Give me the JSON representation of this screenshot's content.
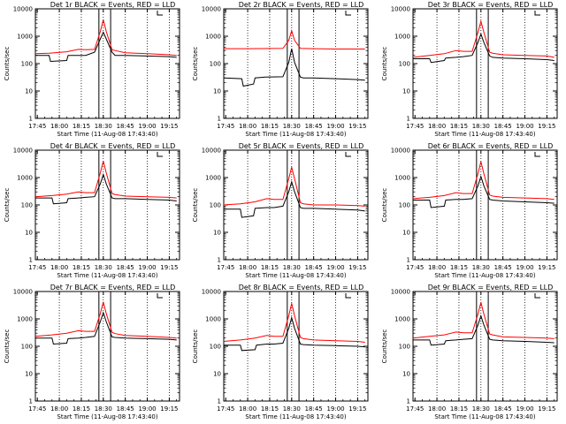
{
  "chart_data": [
    {
      "type": "line",
      "title": "Det 1r BLACK = Events, RED = LLD",
      "xlabel": "Start Time (11-Aug-08 17:43:40)",
      "ylabel": "Counts/sec",
      "yscale": "log",
      "ylim": [
        1,
        10000
      ],
      "xticks": [
        "17:45",
        "18:00",
        "18:15",
        "18:30",
        "18:45",
        "19:00",
        "19:15"
      ],
      "yticks": [
        "1",
        "10",
        "100",
        "1000",
        "10000"
      ],
      "grid": "dotted-vertical",
      "markers": [
        "18:27",
        "18:35"
      ],
      "series": [
        {
          "color": "#000000",
          "x": [
            "17:43",
            "17:53",
            "17:54",
            "18:05",
            "18:06",
            "18:13",
            "18:18",
            "18:24",
            "18:28",
            "18:30",
            "18:32",
            "18:36",
            "18:38",
            "18:45",
            "19:00",
            "19:15",
            "19:20"
          ],
          "values": [
            200,
            200,
            120,
            130,
            200,
            200,
            200,
            260,
            800,
            1400,
            800,
            260,
            200,
            200,
            190,
            180,
            170
          ]
        },
        {
          "color": "#ff0000",
          "x": [
            "17:43",
            "17:53",
            "18:05",
            "18:13",
            "18:18",
            "18:24",
            "18:28",
            "18:30",
            "18:32",
            "18:36",
            "18:38",
            "18:45",
            "19:00",
            "19:15",
            "19:20"
          ],
          "values": [
            230,
            240,
            270,
            330,
            320,
            330,
            1500,
            4000,
            1500,
            320,
            300,
            250,
            230,
            210,
            200
          ]
        }
      ]
    },
    {
      "type": "line",
      "title": "Det 2r BLACK = Events, RED = LLD",
      "xlabel": "Start Time (11-Aug-08 17:43:40)",
      "ylabel": "Counts/sec",
      "yscale": "log",
      "ylim": [
        1,
        10000
      ],
      "xticks": [
        "17:45",
        "18:00",
        "18:15",
        "18:30",
        "18:45",
        "19:00",
        "19:15"
      ],
      "yticks": [
        "1",
        "10",
        "100",
        "1000",
        "10000"
      ],
      "grid": "dotted-vertical",
      "markers": [
        "18:27",
        "18:35"
      ],
      "series": [
        {
          "color": "#000000",
          "x": [
            "17:43",
            "17:56",
            "17:57",
            "18:04",
            "18:05",
            "18:12",
            "18:24",
            "18:28",
            "18:30",
            "18:32",
            "18:36",
            "18:38",
            "18:45",
            "19:00",
            "19:15",
            "19:20"
          ],
          "values": [
            30,
            28,
            15,
            18,
            30,
            32,
            33,
            110,
            350,
            110,
            32,
            30,
            30,
            28,
            26,
            25
          ]
        },
        {
          "color": "#ff0000",
          "x": [
            "17:43",
            "18:00",
            "18:24",
            "18:28",
            "18:30",
            "18:32",
            "18:36",
            "18:45",
            "19:00",
            "19:20"
          ],
          "values": [
            350,
            350,
            360,
            700,
            1600,
            700,
            360,
            350,
            340,
            340
          ]
        }
      ]
    },
    {
      "type": "line",
      "title": "Det 3r BLACK = Events, RED = LLD",
      "xlabel": "Start Time (11-Aug-08 17:43:40)",
      "ylabel": "Counts/sec",
      "yscale": "log",
      "ylim": [
        1,
        10000
      ],
      "xticks": [
        "17:45",
        "18:00",
        "18:15",
        "18:30",
        "18:45",
        "19:00",
        "19:15"
      ],
      "yticks": [
        "1",
        "10",
        "100",
        "1000",
        "10000"
      ],
      "grid": "dotted-vertical",
      "markers": [
        "18:27",
        "18:35"
      ],
      "series": [
        {
          "color": "#000000",
          "x": [
            "17:43",
            "17:55",
            "17:56",
            "18:05",
            "18:06",
            "18:13",
            "18:18",
            "18:24",
            "18:28",
            "18:30",
            "18:32",
            "18:36",
            "18:38",
            "18:45",
            "19:00",
            "19:15",
            "19:20"
          ],
          "values": [
            150,
            150,
            110,
            130,
            160,
            170,
            180,
            200,
            600,
            1200,
            600,
            190,
            170,
            160,
            150,
            140,
            130
          ]
        },
        {
          "color": "#ff0000",
          "x": [
            "17:43",
            "17:55",
            "18:05",
            "18:13",
            "18:18",
            "18:24",
            "18:28",
            "18:30",
            "18:32",
            "18:36",
            "18:38",
            "18:45",
            "19:00",
            "19:15",
            "19:20"
          ],
          "values": [
            170,
            200,
            230,
            300,
            280,
            280,
            1400,
            3500,
            1400,
            260,
            240,
            210,
            200,
            190,
            170
          ]
        }
      ]
    },
    {
      "type": "line",
      "title": "Det 4r BLACK = Events, RED = LLD",
      "xlabel": "Start Time (11-Aug-08 17:43:40)",
      "ylabel": "Counts/sec",
      "yscale": "log",
      "ylim": [
        1,
        10000
      ],
      "xticks": [
        "17:45",
        "18:00",
        "18:15",
        "18:30",
        "18:45",
        "19:00",
        "19:15"
      ],
      "yticks": [
        "1",
        "10",
        "100",
        "1000",
        "10000"
      ],
      "grid": "dotted-vertical",
      "markers": [
        "18:27",
        "18:35"
      ],
      "series": [
        {
          "color": "#000000",
          "x": [
            "17:43",
            "17:55",
            "17:56",
            "18:05",
            "18:06",
            "18:13",
            "18:18",
            "18:24",
            "18:28",
            "18:30",
            "18:32",
            "18:36",
            "18:38",
            "18:45",
            "19:00",
            "19:15",
            "19:20"
          ],
          "values": [
            180,
            180,
            110,
            120,
            170,
            180,
            190,
            200,
            600,
            1300,
            600,
            180,
            170,
            170,
            160,
            150,
            140
          ]
        },
        {
          "color": "#ff0000",
          "x": [
            "17:43",
            "17:55",
            "18:05",
            "18:13",
            "18:18",
            "18:24",
            "18:28",
            "18:30",
            "18:32",
            "18:36",
            "18:38",
            "18:45",
            "19:00",
            "19:15",
            "19:20"
          ],
          "values": [
            200,
            220,
            250,
            300,
            280,
            280,
            1500,
            4000,
            1500,
            260,
            240,
            210,
            200,
            190,
            180
          ]
        }
      ]
    },
    {
      "type": "line",
      "title": "Det 5r BLACK = Events, RED = LLD",
      "xlabel": "Start Time (11-Aug-08 17:43:40)",
      "ylabel": "Counts/sec",
      "yscale": "log",
      "ylim": [
        1,
        10000
      ],
      "xticks": [
        "17:45",
        "18:00",
        "18:15",
        "18:30",
        "18:45",
        "19:00",
        "19:15"
      ],
      "yticks": [
        "1",
        "10",
        "100",
        "1000",
        "10000"
      ],
      "grid": "dotted-vertical",
      "markers": [
        "18:27",
        "18:35"
      ],
      "series": [
        {
          "color": "#000000",
          "x": [
            "17:43",
            "17:55",
            "17:56",
            "18:04",
            "18:05",
            "18:13",
            "18:18",
            "18:24",
            "18:28",
            "18:30",
            "18:32",
            "18:36",
            "18:38",
            "18:45",
            "19:00",
            "19:15",
            "19:20"
          ],
          "values": [
            70,
            70,
            35,
            40,
            75,
            80,
            80,
            90,
            300,
            700,
            300,
            80,
            75,
            75,
            70,
            65,
            60
          ]
        },
        {
          "color": "#ff0000",
          "x": [
            "17:43",
            "17:55",
            "18:05",
            "18:13",
            "18:18",
            "18:24",
            "18:28",
            "18:30",
            "18:32",
            "18:36",
            "18:38",
            "18:45",
            "19:00",
            "19:15",
            "19:20"
          ],
          "values": [
            100,
            110,
            130,
            170,
            160,
            160,
            900,
            2400,
            900,
            120,
            110,
            100,
            100,
            95,
            90
          ]
        }
      ]
    },
    {
      "type": "line",
      "title": "Det 6r BLACK = Events, RED = LLD",
      "xlabel": "Start Time (11-Aug-08 17:43:40)",
      "ylabel": "Counts/sec",
      "yscale": "log",
      "ylim": [
        1,
        10000
      ],
      "xticks": [
        "17:45",
        "18:00",
        "18:15",
        "18:30",
        "18:45",
        "19:00",
        "19:15"
      ],
      "yticks": [
        "1",
        "10",
        "100",
        "1000",
        "10000"
      ],
      "grid": "dotted-vertical",
      "markers": [
        "18:27",
        "18:35"
      ],
      "series": [
        {
          "color": "#000000",
          "x": [
            "17:43",
            "17:55",
            "17:56",
            "18:05",
            "18:06",
            "18:13",
            "18:18",
            "18:24",
            "18:28",
            "18:30",
            "18:32",
            "18:36",
            "18:38",
            "18:45",
            "19:00",
            "19:15",
            "19:20"
          ],
          "values": [
            150,
            150,
            80,
            90,
            150,
            160,
            160,
            170,
            500,
            1100,
            500,
            160,
            150,
            140,
            130,
            120,
            115
          ]
        },
        {
          "color": "#ff0000",
          "x": [
            "17:43",
            "17:55",
            "18:05",
            "18:13",
            "18:18",
            "18:24",
            "18:28",
            "18:30",
            "18:32",
            "18:36",
            "18:38",
            "18:45",
            "19:00",
            "19:15",
            "19:20"
          ],
          "values": [
            170,
            190,
            220,
            280,
            260,
            260,
            1400,
            3800,
            1400,
            230,
            210,
            190,
            180,
            170,
            160
          ]
        }
      ]
    },
    {
      "type": "line",
      "title": "Det 7r BLACK = Events, RED = LLD",
      "xlabel": "Start Time (11-Aug-08 17:43:40)",
      "ylabel": "Counts/sec",
      "yscale": "log",
      "ylim": [
        1,
        10000
      ],
      "xticks": [
        "17:45",
        "18:00",
        "18:15",
        "18:30",
        "18:45",
        "19:00",
        "19:15"
      ],
      "yticks": [
        "1",
        "10",
        "100",
        "1000",
        "10000"
      ],
      "grid": "dotted-vertical",
      "markers": [
        "18:27",
        "18:35"
      ],
      "series": [
        {
          "color": "#000000",
          "x": [
            "17:43",
            "17:55",
            "17:56",
            "18:05",
            "18:06",
            "18:13",
            "18:18",
            "18:24",
            "18:28",
            "18:30",
            "18:32",
            "18:36",
            "18:38",
            "18:45",
            "19:00",
            "19:15",
            "19:20"
          ],
          "values": [
            200,
            200,
            120,
            130,
            190,
            200,
            210,
            230,
            800,
            1700,
            800,
            220,
            210,
            200,
            190,
            180,
            170
          ]
        },
        {
          "color": "#ff0000",
          "x": [
            "17:43",
            "17:55",
            "18:05",
            "18:13",
            "18:18",
            "18:24",
            "18:28",
            "18:30",
            "18:32",
            "18:36",
            "18:38",
            "18:45",
            "19:00",
            "19:15",
            "19:20"
          ],
          "values": [
            230,
            260,
            300,
            370,
            350,
            350,
            1600,
            4200,
            1600,
            320,
            290,
            250,
            230,
            210,
            200
          ]
        }
      ]
    },
    {
      "type": "line",
      "title": "Det 8r BLACK = Events, RED = LLD",
      "xlabel": "Start Time (11-Aug-08 17:43:40)",
      "ylabel": "Counts/sec",
      "yscale": "log",
      "ylim": [
        1,
        10000
      ],
      "xticks": [
        "17:45",
        "18:00",
        "18:15",
        "18:30",
        "18:45",
        "19:00",
        "19:15"
      ],
      "yticks": [
        "1",
        "10",
        "100",
        "1000",
        "10000"
      ],
      "grid": "dotted-vertical",
      "markers": [
        "18:27",
        "18:35"
      ],
      "series": [
        {
          "color": "#000000",
          "x": [
            "17:43",
            "17:55",
            "17:56",
            "18:05",
            "18:06",
            "18:13",
            "18:18",
            "18:24",
            "18:28",
            "18:30",
            "18:32",
            "18:36",
            "18:38",
            "18:45",
            "19:00",
            "19:15",
            "19:20"
          ],
          "values": [
            110,
            110,
            70,
            75,
            110,
            120,
            120,
            130,
            450,
            1100,
            450,
            120,
            115,
            110,
            105,
            100,
            95
          ]
        },
        {
          "color": "#ff0000",
          "x": [
            "17:43",
            "17:55",
            "18:05",
            "18:13",
            "18:18",
            "18:24",
            "18:28",
            "18:30",
            "18:32",
            "18:36",
            "18:38",
            "18:45",
            "19:00",
            "19:15",
            "19:20"
          ],
          "values": [
            150,
            170,
            200,
            250,
            230,
            230,
            1300,
            3700,
            1300,
            210,
            190,
            170,
            160,
            150,
            140
          ]
        }
      ]
    },
    {
      "type": "line",
      "title": "Det 9r BLACK = Events, RED = LLD",
      "xlabel": "Start Time (11-Aug-08 17:43:40)",
      "ylabel": "Counts/sec",
      "yscale": "log",
      "ylim": [
        1,
        10000
      ],
      "xticks": [
        "17:45",
        "18:00",
        "18:15",
        "18:30",
        "18:45",
        "19:00",
        "19:15"
      ],
      "yticks": [
        "1",
        "10",
        "100",
        "1000",
        "10000"
      ],
      "grid": "dotted-vertical",
      "markers": [
        "18:27",
        "18:35"
      ],
      "series": [
        {
          "color": "#000000",
          "x": [
            "17:43",
            "17:55",
            "17:56",
            "18:05",
            "18:06",
            "18:13",
            "18:18",
            "18:24",
            "18:28",
            "18:30",
            "18:32",
            "18:36",
            "18:38",
            "18:45",
            "19:00",
            "19:15",
            "19:20"
          ],
          "values": [
            170,
            170,
            110,
            120,
            160,
            170,
            180,
            190,
            600,
            1300,
            600,
            180,
            170,
            160,
            150,
            140,
            135
          ]
        },
        {
          "color": "#ff0000",
          "x": [
            "17:43",
            "17:55",
            "18:05",
            "18:13",
            "18:18",
            "18:24",
            "18:28",
            "18:30",
            "18:32",
            "18:36",
            "18:38",
            "18:45",
            "19:00",
            "19:15",
            "19:20"
          ],
          "values": [
            200,
            230,
            260,
            330,
            310,
            310,
            1500,
            4000,
            1500,
            280,
            260,
            220,
            210,
            200,
            190
          ]
        }
      ]
    }
  ]
}
